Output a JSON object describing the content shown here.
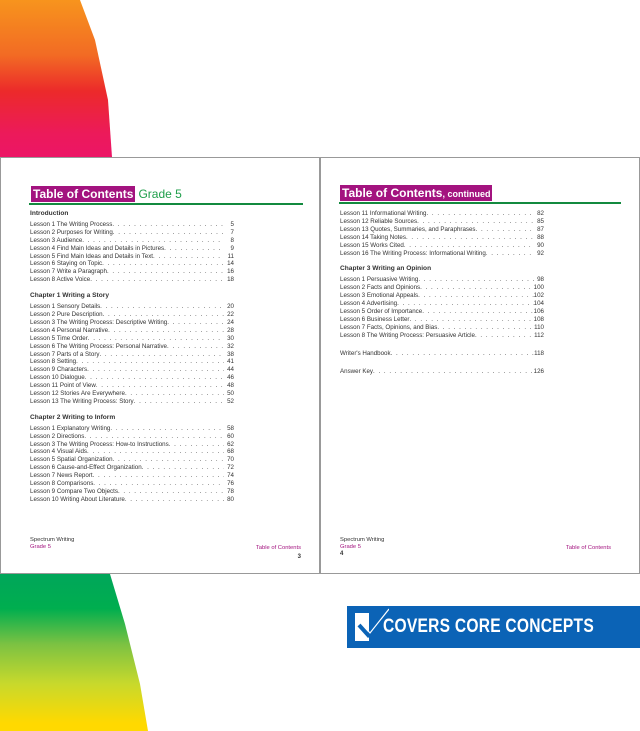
{
  "left_page": {
    "title": "Table of Contents",
    "subtitle": "Grade 5",
    "sections": [
      {
        "heading": "Introduction",
        "items": [
          {
            "label": "Lesson 1 The Writing Process",
            "page": "5"
          },
          {
            "label": "Lesson 2 Purposes for Writing",
            "page": "7"
          },
          {
            "label": "Lesson 3 Audience",
            "page": "8"
          },
          {
            "label": "Lesson 4 Find Main Ideas and Details in Pictures",
            "page": "9"
          },
          {
            "label": "Lesson 5 Find Main Ideas and Details in Text",
            "page": "11"
          },
          {
            "label": "Lesson 6 Staying on Topic",
            "page": "14"
          },
          {
            "label": "Lesson 7 Write a Paragraph",
            "page": "16"
          },
          {
            "label": "Lesson 8 Active Voice",
            "page": "18"
          }
        ]
      },
      {
        "heading": "Chapter 1 Writing a Story",
        "items": [
          {
            "label": "Lesson 1 Sensory Details",
            "page": "20"
          },
          {
            "label": "Lesson 2 Pure Description",
            "page": "22"
          },
          {
            "label": "Lesson 3 The Writing Process: Descriptive Writing",
            "page": "24"
          },
          {
            "label": "Lesson 4 Personal Narrative",
            "page": "28"
          },
          {
            "label": "Lesson 5 Time Order",
            "page": "30"
          },
          {
            "label": "Lesson 6 The Writing Process: Personal Narrative",
            "page": "32"
          },
          {
            "label": "Lesson 7 Parts of a Story",
            "page": "38"
          },
          {
            "label": "Lesson 8 Setting",
            "page": "41"
          },
          {
            "label": "Lesson 9 Characters",
            "page": "44"
          },
          {
            "label": "Lesson 10 Dialogue",
            "page": "46"
          },
          {
            "label": "Lesson 11 Point of View",
            "page": "48"
          },
          {
            "label": "Lesson 12 Stories Are Everywhere",
            "page": "50"
          },
          {
            "label": "Lesson 13 The Writing Process: Story",
            "page": "52"
          }
        ]
      },
      {
        "heading": "Chapter 2 Writing to Inform",
        "items": [
          {
            "label": "Lesson 1 Explanatory Writing",
            "page": "58"
          },
          {
            "label": "Lesson 2 Directions",
            "page": "60"
          },
          {
            "label": "Lesson 3 The Writing Process: How-to Instructions",
            "page": "62"
          },
          {
            "label": "Lesson 4 Visual Aids",
            "page": "68"
          },
          {
            "label": "Lesson 5 Spatial Organization",
            "page": "70"
          },
          {
            "label": "Lesson 6 Cause-and-Effect Organization",
            "page": "72"
          },
          {
            "label": "Lesson 7 News Report",
            "page": "74"
          },
          {
            "label": "Lesson 8 Comparisons",
            "page": "76"
          },
          {
            "label": "Lesson 9 Compare Two Objects",
            "page": "78"
          },
          {
            "label": "Lesson 10 Writing About Literature",
            "page": "80"
          }
        ]
      }
    ],
    "footer": {
      "book": "Spectrum Writing",
      "grade": "Grade 5",
      "section": "Table of Contents",
      "page_number": "3"
    }
  },
  "right_page": {
    "title": "Table of Contents",
    "subtitle": ", continued",
    "sections": [
      {
        "heading": "",
        "items": [
          {
            "label": "Lesson 11 Informational Writing",
            "page": "82"
          },
          {
            "label": "Lesson 12 Reliable Sources",
            "page": "85"
          },
          {
            "label": "Lesson 13 Quotes, Summaries, and Paraphrases",
            "page": "87"
          },
          {
            "label": "Lesson 14 Taking Notes",
            "page": "88"
          },
          {
            "label": "Lesson 15 Works Cited",
            "page": "90"
          },
          {
            "label": "Lesson 16 The Writing Process: Informational Writing",
            "page": "92"
          }
        ]
      },
      {
        "heading": "Chapter 3 Writing an Opinion",
        "items": [
          {
            "label": "Lesson 1 Persuasive Writing",
            "page": "98"
          },
          {
            "label": "Lesson 2 Facts and Opinions",
            "page": "100"
          },
          {
            "label": "Lesson 3 Emotional Appeals",
            "page": "102"
          },
          {
            "label": "Lesson 4 Advertising",
            "page": "104"
          },
          {
            "label": "Lesson 5 Order of Importance",
            "page": "106"
          },
          {
            "label": "Lesson 6 Business Letter",
            "page": "108"
          },
          {
            "label": "Lesson 7 Facts, Opinions, and Bias",
            "page": "110"
          },
          {
            "label": "Lesson 8 The Writing Process: Persuasive Article",
            "page": "112"
          }
        ]
      }
    ],
    "extras": [
      {
        "label": "Writer's Handbook",
        "page": "118"
      },
      {
        "label": "Answer Key",
        "page": "126"
      }
    ],
    "footer": {
      "book": "Spectrum Writing",
      "grade": "Grade 5",
      "section": "Table of Contents",
      "page_number": "4"
    }
  },
  "banner": {
    "text": "COVERS CORE CONCEPTS",
    "icon": "checkbox-check-icon",
    "color": "#0b63b6"
  },
  "colors": {
    "title_box": "#a3137f",
    "rule": "#138a3f",
    "grade": "#1e9e4a"
  }
}
